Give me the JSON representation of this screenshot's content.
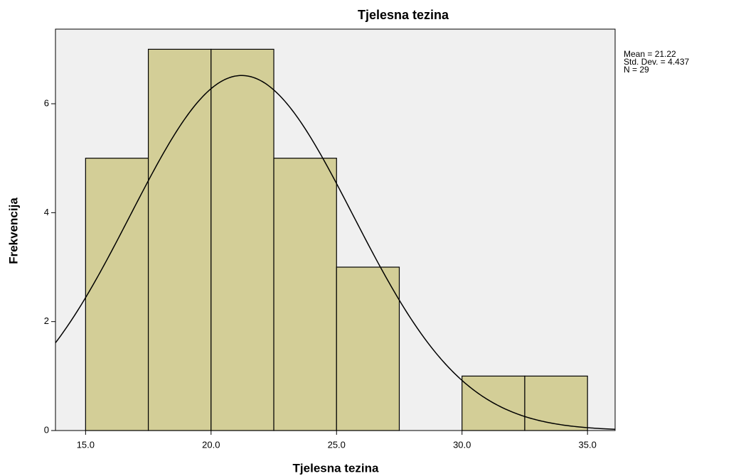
{
  "chart_data": {
    "type": "histogram",
    "title": "Tjelesna tezina",
    "x_label": "Tjelesna tezina",
    "y_label": "Frekvencija",
    "bins": [
      15,
      17.5,
      20,
      22.5,
      25,
      27.5,
      30,
      32.5,
      35
    ],
    "values": [
      5,
      7,
      7,
      5,
      3,
      0,
      1,
      1
    ],
    "color": "#d3ce97",
    "xlim": [
      13.8,
      36.1
    ],
    "xticks": [
      {
        "value": 15,
        "label": "15.0"
      },
      {
        "value": 20,
        "label": "20.0"
      },
      {
        "value": 25,
        "label": "25.0"
      },
      {
        "value": 30,
        "label": "30.0"
      },
      {
        "value": 35,
        "label": "35.0"
      }
    ],
    "ylim": [
      0,
      7.37
    ],
    "yticks": [
      0,
      2,
      4,
      6
    ],
    "stats": {
      "names": [
        "Mean",
        "Std. Dev.",
        "N"
      ],
      "values": [
        21.22,
        4.437,
        29
      ],
      "value_labels": [
        "Mean = 21.22",
        "Std. Dev. = 4.437",
        "N = 29"
      ]
    }
  }
}
